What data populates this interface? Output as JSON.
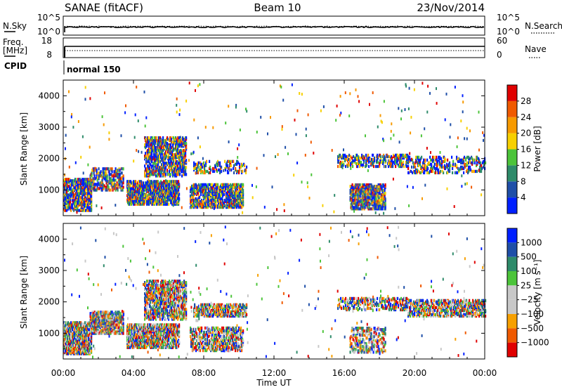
{
  "header": {
    "title": "SANAE (fitACF)",
    "beam": "Beam 10",
    "date": "23/Nov/2014"
  },
  "noise_panel": {
    "left_label": "N.Sky",
    "right_label": "N.Search",
    "left_ticks": [
      "10^5",
      "10^0"
    ],
    "right_ticks": [
      "10^5",
      "10^0"
    ]
  },
  "freq_panel": {
    "left_label": "Freq.",
    "left_unit": "[MHz]",
    "right_label": "Nave",
    "left_ticks": [
      "18",
      "8"
    ],
    "right_ticks": [
      "60",
      "0"
    ]
  },
  "cpid_panel": {
    "label": "CPID",
    "value": "normal 150"
  },
  "colors": {
    "power_scale": [
      "#0020ff",
      "#1f4fa8",
      "#2e8b6a",
      "#4cc43a",
      "#f7d000",
      "#f79a00",
      "#f05a00",
      "#e00000"
    ],
    "velocity_scale": [
      "#e00000",
      "#f05a00",
      "#f7a000",
      "#c8c8c8",
      "#c8c8c8",
      "#4cc43a",
      "#2e8b6a",
      "#1f4fa8",
      "#0020ff"
    ]
  },
  "chart_data": [
    {
      "type": "heatmap",
      "name": "power",
      "ylabel": "Slant Range [km]",
      "ylim": [
        180,
        4500
      ],
      "yticks": [
        "1000",
        "2000",
        "3000",
        "4000"
      ],
      "xlim": [
        0,
        24
      ],
      "colorbar": {
        "label": "Power [dB]",
        "range": [
          0,
          32
        ],
        "tick_labels": [
          "4",
          "8",
          "12",
          "16",
          "20",
          "24",
          "28"
        ]
      },
      "regions": [
        {
          "t0": 0.0,
          "t1": 1.6,
          "r0": 350,
          "r1": 1350,
          "level": 0.45
        },
        {
          "t0": 1.5,
          "t1": 3.4,
          "r0": 1000,
          "r1": 1700,
          "level": 0.35
        },
        {
          "t0": 3.6,
          "t1": 6.6,
          "r0": 550,
          "r1": 1300,
          "level": 0.55
        },
        {
          "t0": 4.6,
          "t1": 7.0,
          "r0": 1450,
          "r1": 2700,
          "level": 0.4
        },
        {
          "t0": 7.2,
          "t1": 10.2,
          "r0": 450,
          "r1": 1200,
          "level": 0.5
        },
        {
          "t0": 7.4,
          "t1": 10.4,
          "r0": 1550,
          "r1": 1950,
          "level": 0.2
        },
        {
          "t0": 15.6,
          "t1": 19.6,
          "r0": 1750,
          "r1": 2150,
          "level": 0.3
        },
        {
          "t0": 16.3,
          "t1": 18.3,
          "r0": 400,
          "r1": 1200,
          "level": 0.45
        },
        {
          "t0": 19.6,
          "t1": 24.0,
          "r0": 1550,
          "r1": 2050,
          "level": 0.2
        }
      ]
    },
    {
      "type": "heatmap",
      "name": "velocity",
      "ylabel": "Slant Range [km]",
      "ylim": [
        180,
        4500
      ],
      "yticks": [
        "1000",
        "2000",
        "3000",
        "4000"
      ],
      "xlim": [
        0,
        24
      ],
      "xlabel": "Time UT",
      "xticks": [
        "00:00",
        "04:00",
        "08:00",
        "12:00",
        "16:00",
        "20:00",
        "00:00"
      ],
      "colorbar": {
        "label": "Velocity [m s⁻¹]",
        "tick_labels": [
          "1000",
          "500",
          "100",
          "25",
          "−25",
          "−100",
          "−500",
          "−1000"
        ]
      },
      "regions": [
        {
          "t0": 0.0,
          "t1": 1.6,
          "r0": 350,
          "r1": 1350,
          "level": 0.6
        },
        {
          "t0": 1.5,
          "t1": 3.4,
          "r0": 1000,
          "r1": 1700,
          "level": 0.55
        },
        {
          "t0": 3.6,
          "t1": 6.6,
          "r0": 550,
          "r1": 1300,
          "level": 0.55
        },
        {
          "t0": 4.6,
          "t1": 7.0,
          "r0": 1450,
          "r1": 2700,
          "level": 0.45
        },
        {
          "t0": 7.2,
          "t1": 10.2,
          "r0": 450,
          "r1": 1200,
          "level": 0.35
        },
        {
          "t0": 7.4,
          "t1": 10.4,
          "r0": 1550,
          "r1": 1950,
          "level": 0.45
        },
        {
          "t0": 15.6,
          "t1": 19.6,
          "r0": 1750,
          "r1": 2150,
          "level": 0.3
        },
        {
          "t0": 16.3,
          "t1": 18.3,
          "r0": 400,
          "r1": 1200,
          "level": 0.25
        },
        {
          "t0": 19.6,
          "t1": 24.0,
          "r0": 1550,
          "r1": 2050,
          "level": 0.4
        }
      ]
    }
  ]
}
